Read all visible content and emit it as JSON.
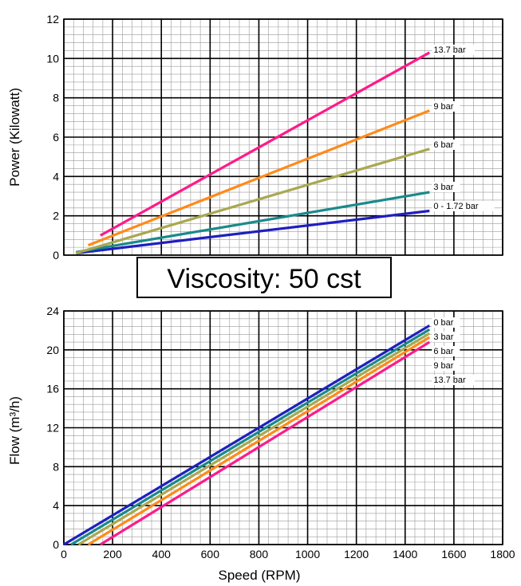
{
  "banner": "Viscosity: 50 cst",
  "colors": {
    "grid_major": "#000000",
    "grid_minor": "#9a9a9a",
    "c0": "#1f1fbf",
    "c3": "#1a8a8a",
    "c6": "#a8a850",
    "c9": "#ff8a1a",
    "c137": "#ff1a8a"
  },
  "chart_data": [
    {
      "type": "line",
      "ylabel": "Power (Kilowatt)",
      "xlim": [
        0,
        1800
      ],
      "ylim": [
        0,
        12
      ],
      "x_ticks": [
        "0",
        "200",
        "400",
        "600",
        "800",
        "1000",
        "1200",
        "1400",
        "1600",
        "1800"
      ],
      "y_ticks": [
        "0",
        "2",
        "4",
        "6",
        "8",
        "10",
        "12"
      ],
      "grid": true,
      "series": [
        {
          "name": "0 - 1.72 bar",
          "color": "#1f1fbf",
          "x": [
            50,
            1500
          ],
          "y": [
            0.1,
            2.25
          ]
        },
        {
          "name": "3 bar",
          "color": "#1a8a8a",
          "x": [
            50,
            1500
          ],
          "y": [
            0.15,
            3.2
          ]
        },
        {
          "name": "6 bar",
          "color": "#a8a850",
          "x": [
            50,
            1500
          ],
          "y": [
            0.1,
            5.4
          ]
        },
        {
          "name": "9 bar",
          "color": "#ff8a1a",
          "x": [
            100,
            1500
          ],
          "y": [
            0.5,
            7.35
          ]
        },
        {
          "name": "13.7 bar",
          "color": "#ff1a8a",
          "x": [
            150,
            1500
          ],
          "y": [
            1.0,
            10.3
          ]
        }
      ]
    },
    {
      "type": "line",
      "xlabel": "Speed (RPM)",
      "ylabel": "Flow (m³/h)",
      "xlim": [
        0,
        1800
      ],
      "ylim": [
        0,
        24
      ],
      "x_ticks": [
        "0",
        "200",
        "400",
        "600",
        "800",
        "1000",
        "1200",
        "1400",
        "1600",
        "1800"
      ],
      "y_ticks": [
        "0",
        "4",
        "8",
        "12",
        "16",
        "20",
        "24"
      ],
      "grid": true,
      "series": [
        {
          "name": "0 bar",
          "color": "#1f1fbf",
          "x": [
            0,
            1500
          ],
          "y": [
            0,
            22.5
          ]
        },
        {
          "name": "3 bar",
          "color": "#1a8a8a",
          "x": [
            30,
            1500
          ],
          "y": [
            0,
            22.1
          ]
        },
        {
          "name": "6 bar",
          "color": "#a8a850",
          "x": [
            60,
            1500
          ],
          "y": [
            0,
            21.7
          ]
        },
        {
          "name": "9 bar",
          "color": "#ff8a1a",
          "x": [
            100,
            1500
          ],
          "y": [
            0,
            21.3
          ]
        },
        {
          "name": "13.7 bar",
          "color": "#ff1a8a",
          "x": [
            150,
            1500
          ],
          "y": [
            0,
            20.8
          ]
        }
      ]
    }
  ]
}
